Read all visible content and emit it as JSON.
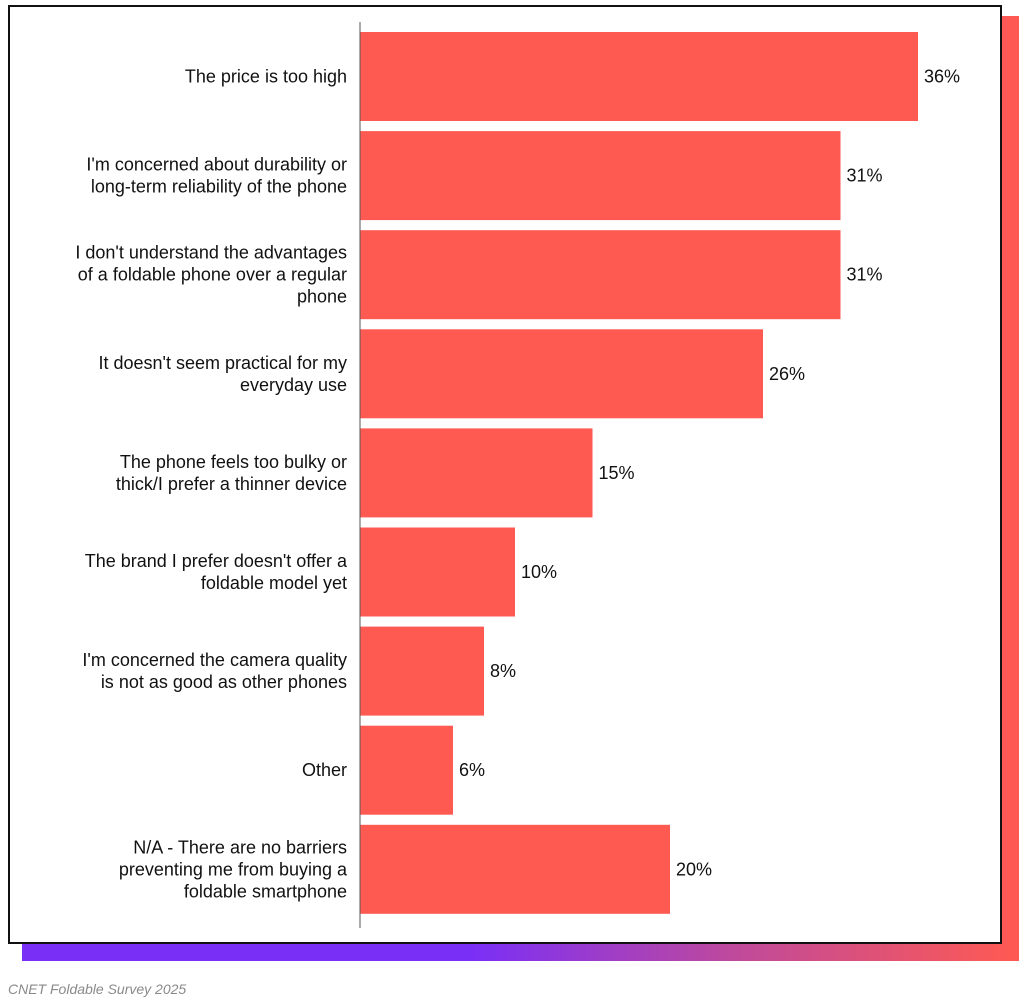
{
  "source_note": "CNET  Foldable Survey 2025",
  "colors": {
    "bar": "#ff5a52",
    "axis": "#555555",
    "text": "#111111",
    "frame_border": "#111111",
    "shadow_left": "#7a2ff7",
    "shadow_right": "#ff5a52",
    "source_text": "#8a8a8a"
  },
  "chart_data": {
    "type": "bar",
    "orientation": "horizontal",
    "title": "",
    "xlabel": "",
    "ylabel": "",
    "value_suffix": "%",
    "xlim": [
      0,
      40
    ],
    "grid": false,
    "legend": "none",
    "categories": [
      [
        "The price is too high"
      ],
      [
        "I'm concerned about durability or",
        "long-term reliability of the phone"
      ],
      [
        "I don't understand the advantages",
        "of a foldable phone over a regular",
        "phone"
      ],
      [
        "It doesn't seem practical for my",
        "everyday use"
      ],
      [
        "The phone feels too bulky or",
        "thick/I prefer a thinner device"
      ],
      [
        "The brand I prefer doesn't offer a",
        "foldable model yet"
      ],
      [
        "I'm concerned the camera quality",
        "is not as good as other phones"
      ],
      [
        "Other"
      ],
      [
        "N/A - There are no barriers",
        "preventing me from buying a",
        "foldable smartphone"
      ]
    ],
    "values": [
      36,
      31,
      31,
      26,
      15,
      10,
      8,
      6,
      20
    ],
    "data_labels": [
      "36%",
      "31%",
      "31%",
      "26%",
      "15%",
      "10%",
      "8%",
      "6%",
      "20%"
    ]
  }
}
